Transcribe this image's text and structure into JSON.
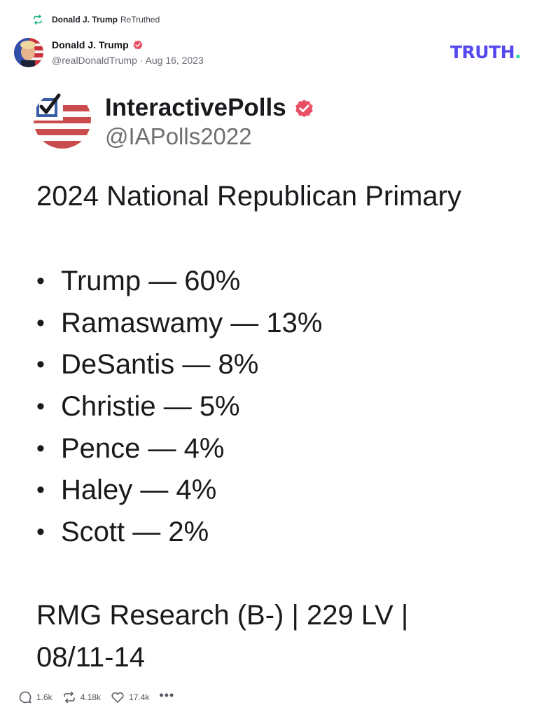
{
  "retruth": {
    "name": "Donald J. Trump",
    "label": "ReTruthed"
  },
  "post": {
    "author_name": "Donald J. Trump",
    "handle_date": "@realDonaldTrump · Aug 16, 2023",
    "brand_logo": "TRUTH",
    "brand_dot": "."
  },
  "embed": {
    "account_name": "InteractivePolls",
    "account_handle": "@IAPolls2022",
    "title": "2024 National Republican Primary",
    "results": [
      {
        "bullet": "•",
        "text": "Trump — 60%"
      },
      {
        "bullet": "•",
        "text": "Ramaswamy — 13%"
      },
      {
        "bullet": "•",
        "text": "DeSantis — 8%"
      },
      {
        "bullet": "•",
        "text": "Christie — 5%"
      },
      {
        "bullet": "•",
        "text": "Pence — 4%"
      },
      {
        "bullet": "•",
        "text": "Haley — 4%"
      },
      {
        "bullet": "•",
        "text": "Scott — 2%"
      }
    ],
    "source": "RMG Research (B-) | 229 LV | 08/11-14"
  },
  "actions": {
    "replies": "1.6k",
    "retruths": "4.18k",
    "likes": "17.4k",
    "more": "•••"
  },
  "colors": {
    "brand": "#5448ee",
    "brand_dot": "#1bd2a4",
    "verified": "#e94f64",
    "retruth_icon": "#1bb87c"
  }
}
